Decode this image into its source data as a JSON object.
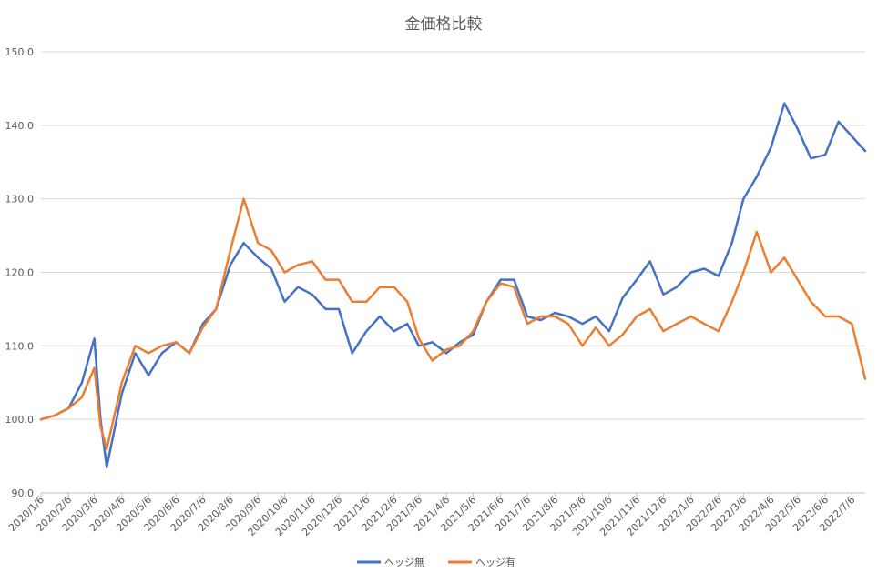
{
  "chart_data": {
    "type": "line",
    "title": "金価格比較",
    "xlabel": "",
    "ylabel": "",
    "ylim": [
      90,
      150
    ],
    "y_ticks": [
      90,
      100,
      110,
      120,
      130,
      140,
      150
    ],
    "y_tick_labels": [
      "90.0",
      "100.0",
      "110.0",
      "120.0",
      "130.0",
      "140.0",
      "150.0"
    ],
    "grid": true,
    "legend_position": "bottom",
    "x_tick_labels": [
      "2020/1/6",
      "2020/2/6",
      "2020/3/6",
      "2020/4/6",
      "2020/5/6",
      "2020/6/6",
      "2020/7/6",
      "2020/8/6",
      "2020/9/6",
      "2020/10/6",
      "2020/11/6",
      "2020/12/6",
      "2021/1/6",
      "2021/2/6",
      "2021/3/6",
      "2021/4/6",
      "2021/5/6",
      "2021/6/6",
      "2021/7/6",
      "2021/8/6",
      "2021/9/6",
      "2021/10/6",
      "2021/11/6",
      "2021/12/6",
      "2022/1/6",
      "2022/2/6",
      "2022/3/6",
      "2022/4/6",
      "2022/5/6",
      "2022/6/6",
      "2022/7/6"
    ],
    "x": [
      "2020/1/6",
      "2020/1/21",
      "2020/2/6",
      "2020/2/21",
      "2020/3/6",
      "2020/3/13",
      "2020/3/20",
      "2020/4/6",
      "2020/4/21",
      "2020/5/6",
      "2020/5/21",
      "2020/6/6",
      "2020/6/21",
      "2020/7/6",
      "2020/7/21",
      "2020/8/6",
      "2020/8/21",
      "2020/9/6",
      "2020/9/21",
      "2020/10/6",
      "2020/10/21",
      "2020/11/6",
      "2020/11/21",
      "2020/12/6",
      "2020/12/21",
      "2021/1/6",
      "2021/1/21",
      "2021/2/6",
      "2021/2/21",
      "2021/3/6",
      "2021/3/21",
      "2021/4/6",
      "2021/4/21",
      "2021/5/6",
      "2021/5/21",
      "2021/6/6",
      "2021/6/21",
      "2021/7/6",
      "2021/7/21",
      "2021/8/6",
      "2021/8/21",
      "2021/9/6",
      "2021/9/21",
      "2021/10/6",
      "2021/10/21",
      "2021/11/6",
      "2021/11/21",
      "2021/12/6",
      "2021/12/21",
      "2022/1/6",
      "2022/1/21",
      "2022/2/6",
      "2022/2/21",
      "2022/3/6",
      "2022/3/21",
      "2022/4/6",
      "2022/4/21",
      "2022/5/6",
      "2022/5/21",
      "2022/6/6",
      "2022/6/21",
      "2022/7/6",
      "2022/7/21"
    ],
    "series": [
      {
        "name": "ヘッジ無",
        "color": "#4472C4",
        "values": [
          100.0,
          100.5,
          101.5,
          105,
          111,
          100,
          93.5,
          103.5,
          109,
          106,
          109,
          110.5,
          109,
          113,
          115,
          121,
          124,
          122,
          120.5,
          116,
          118,
          117,
          115,
          115,
          109,
          112,
          114,
          112,
          113,
          110,
          110.5,
          109,
          110.5,
          111.5,
          116,
          119,
          119,
          114,
          113.5,
          114.5,
          114,
          113,
          114,
          112,
          116.5,
          119,
          121.5,
          117,
          118,
          120,
          120.5,
          119.5,
          124,
          130,
          133,
          137,
          143,
          139.5,
          135.5,
          136,
          140.5,
          138.5,
          136.5
        ]
      },
      {
        "name": "ヘッジ有",
        "color": "#ED7D31",
        "values": [
          100.0,
          100.5,
          101.5,
          103,
          107,
          99,
          96,
          105,
          110,
          109,
          110,
          110.5,
          109,
          112.5,
          115,
          123,
          130,
          124,
          123,
          120,
          121,
          121.5,
          119,
          119,
          116,
          116,
          118,
          118,
          116,
          111,
          108,
          109.5,
          110,
          112,
          116,
          118.5,
          118,
          113,
          114,
          114,
          113,
          110,
          112.5,
          110,
          111.5,
          114,
          115,
          112,
          113,
          114,
          113,
          112,
          116,
          120,
          125.5,
          120,
          122,
          119,
          116,
          114,
          114,
          113,
          105.5
        ]
      }
    ]
  }
}
